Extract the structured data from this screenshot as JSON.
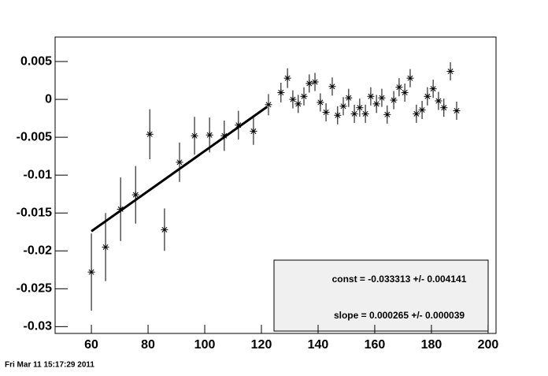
{
  "chart_data": {
    "type": "scatter",
    "x": [
      60,
      65,
      70.3,
      75.6,
      80.6,
      85.8,
      91.1,
      96.4,
      101.7,
      106.9,
      111.9,
      117.2,
      122.5,
      126.9,
      129.2,
      131.1,
      133,
      135,
      136.9,
      138.9,
      140.8,
      142.8,
      145,
      146.9,
      148.9,
      150.8,
      152.8,
      154.7,
      156.7,
      158.6,
      160.6,
      162.5,
      164.4,
      166.7,
      168.6,
      170.6,
      172.5,
      174.7,
      176.7,
      178.6,
      180.6,
      182.5,
      184.4,
      186.7,
      188.9
    ],
    "values": [
      -0.0228,
      -0.0195,
      -0.0145,
      -0.0126,
      -0.0046,
      -0.0172,
      -0.0083,
      -0.0048,
      -0.0047,
      -0.0048,
      -0.0034,
      -0.0042,
      -0.0007,
      0.0009,
      0.0028,
      0,
      -0.0006,
      0.0004,
      0.0021,
      0.0023,
      -0.0004,
      -0.0017,
      0.0017,
      -0.0021,
      -0.0009,
      0.0002,
      -0.0019,
      -0.0011,
      -0.0019,
      0.0004,
      -0.0006,
      0.0002,
      -0.002,
      -0.0001,
      0.0016,
      0.0009,
      0.0028,
      -0.0019,
      -0.0014,
      0.0004,
      0.0014,
      -0.0002,
      -0.0011,
      0.0037,
      -0.0015
    ],
    "errors": [
      0.0051,
      0.0045,
      0.0042,
      0.0038,
      0.0033,
      0.0028,
      0.0026,
      0.0025,
      0.0023,
      0.002,
      0.0019,
      0.0018,
      0.0014,
      0.0013,
      0.0013,
      0.0012,
      0.0012,
      0.0012,
      0.0012,
      0.0012,
      0.0012,
      0.0012,
      0.0012,
      0.0012,
      0.0012,
      0.0012,
      0.0012,
      0.0012,
      0.0012,
      0.0012,
      0.0012,
      0.0012,
      0.0012,
      0.0012,
      0.0012,
      0.0012,
      0.0012,
      0.0012,
      0.0012,
      0.0012,
      0.0012,
      0.0012,
      0.0012,
      0.0012,
      0.0012
    ],
    "color": "#000000",
    "fit": {
      "const": -0.033313,
      "slope": 0.000265,
      "xrange": [
        60,
        122
      ]
    },
    "stats_lines": [
      "const = -0.033313 +/- 0.004141",
      "slope = 0.000265 +/- 0.000039"
    ],
    "xlim": [
      47.2,
      202.8
    ],
    "xticks": [
      60,
      80,
      100,
      120,
      140,
      160,
      180,
      200
    ],
    "ylim": [
      -0.0309,
      0.00823
    ],
    "yticks": [
      0.005,
      0,
      -0.005,
      -0.01,
      -0.015,
      -0.02,
      -0.025,
      -0.03
    ],
    "footer": "Fri Mar 11 15:17:29 2011"
  }
}
